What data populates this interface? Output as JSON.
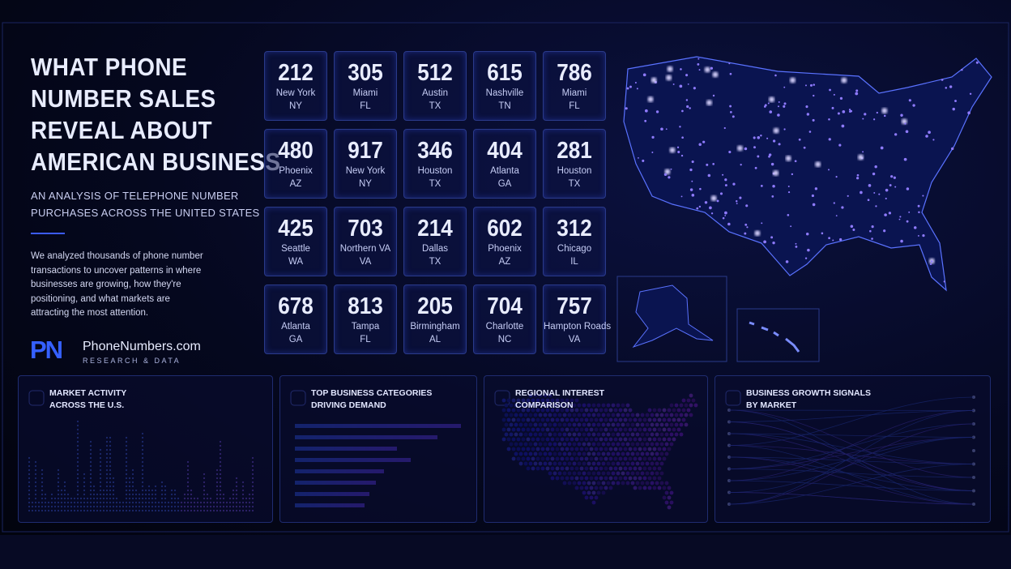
{
  "header": {
    "title_lines": [
      "WHAT PHONE",
      "NUMBER SALES",
      "REVEAL ABOUT",
      "AMERICAN BUSINESS"
    ],
    "subtitle_lines": [
      "AN ANALYSIS OF TELEPHONE NUMBER",
      "PURCHASES ACROSS THE UNITED STATES"
    ],
    "intro": "We analyzed thousands of phone number transactions to uncover patterns in where businesses are growing, how they're positioning, and what markets are attracting the most attention."
  },
  "brand": {
    "logo": "PN",
    "name": "PhoneNumbers.com",
    "tagline": "RESEARCH & DATA"
  },
  "area_codes": [
    {
      "code": "212",
      "city": "New York",
      "state": "NY"
    },
    {
      "code": "305",
      "city": "Miami",
      "state": "FL"
    },
    {
      "code": "512",
      "city": "Austin",
      "state": "TX"
    },
    {
      "code": "615",
      "city": "Nashville",
      "state": "TN"
    },
    {
      "code": "786",
      "city": "Miami",
      "state": "FL"
    },
    {
      "code": "480",
      "city": "Phoenix",
      "state": "AZ"
    },
    {
      "code": "917",
      "city": "New York",
      "state": "NY"
    },
    {
      "code": "346",
      "city": "Houston",
      "state": "TX"
    },
    {
      "code": "404",
      "city": "Atlanta",
      "state": "GA"
    },
    {
      "code": "281",
      "city": "Houston",
      "state": "TX"
    },
    {
      "code": "425",
      "city": "Seattle",
      "state": "WA"
    },
    {
      "code": "703",
      "city": "Northern VA",
      "state": "VA"
    },
    {
      "code": "214",
      "city": "Dallas",
      "state": "TX"
    },
    {
      "code": "602",
      "city": "Phoenix",
      "state": "AZ"
    },
    {
      "code": "312",
      "city": "Chicago",
      "state": "IL"
    },
    {
      "code": "678",
      "city": "Atlanta",
      "state": "GA"
    },
    {
      "code": "813",
      "city": "Tampa",
      "state": "FL"
    },
    {
      "code": "205",
      "city": "Birmingham",
      "state": "AL"
    },
    {
      "code": "704",
      "city": "Charlotte",
      "state": "NC"
    },
    {
      "code": "757",
      "city": "Hampton Roads",
      "state": "VA"
    }
  ],
  "panels": [
    {
      "title_lines": [
        "MARKET ACTIVITY",
        "ACROSS THE U.S."
      ]
    },
    {
      "title_lines": [
        "TOP BUSINESS CATEGORIES",
        "DRIVING DEMAND"
      ]
    },
    {
      "title_lines": [
        "REGIONAL INTEREST",
        "COMPARISON"
      ]
    },
    {
      "title_lines": [
        "BUSINESS GROWTH SIGNALS",
        "BY MARKET"
      ]
    }
  ]
}
